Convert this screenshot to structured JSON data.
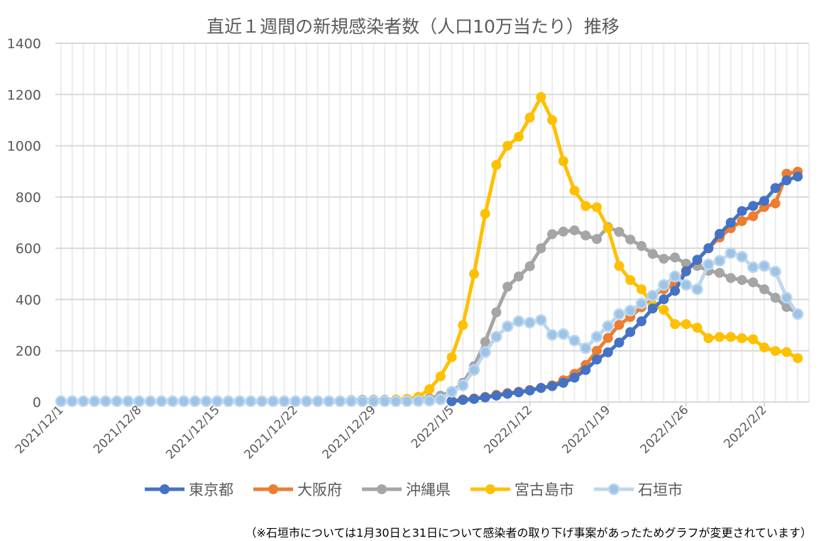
{
  "chart_data": {
    "type": "line",
    "title": "直近１週間の新規感染者数（人口10万当たり）推移",
    "footnote": "（※石垣市については1月30日と31日について感染者の取り下げ事案があったためグラフが変更されています）",
    "x_start": "2021/12/1",
    "x_end": "2022/2/5",
    "x_tick_labels": [
      "2021/12/1",
      "2021/12/8",
      "2021/12/15",
      "2021/12/22",
      "2021/12/29",
      "2022/1/5",
      "2022/1/12",
      "2022/1/19",
      "2022/1/26",
      "2022/2/2"
    ],
    "ylim": [
      0,
      1400
    ],
    "y_ticks": [
      0,
      200,
      400,
      600,
      800,
      1000,
      1200,
      1400
    ],
    "grid": true,
    "legend_position": "bottom",
    "series": [
      {
        "name": "東京都",
        "color": "#4472C4",
        "values": [
          null,
          null,
          null,
          null,
          null,
          null,
          null,
          null,
          null,
          null,
          null,
          null,
          null,
          null,
          null,
          null,
          null,
          null,
          null,
          null,
          null,
          null,
          null,
          null,
          null,
          null,
          null,
          null,
          null,
          null,
          null,
          null,
          null,
          null,
          null,
          3,
          8,
          12,
          18,
          25,
          32,
          38,
          45,
          55,
          62,
          75,
          95,
          125,
          166,
          194,
          232,
          273,
          315,
          365,
          401,
          434,
          510,
          555,
          600,
          656,
          700,
          745,
          765,
          785,
          835,
          865,
          880
        ]
      },
      {
        "name": "大阪府",
        "color": "#ED7D31",
        "values": [
          null,
          null,
          null,
          null,
          null,
          null,
          null,
          null,
          null,
          null,
          null,
          null,
          null,
          null,
          null,
          null,
          null,
          null,
          null,
          null,
          null,
          null,
          null,
          null,
          null,
          null,
          null,
          null,
          null,
          null,
          null,
          null,
          null,
          null,
          null,
          5,
          10,
          14,
          20,
          28,
          35,
          40,
          47,
          55,
          65,
          85,
          110,
          145,
          200,
          250,
          301,
          332,
          370,
          415,
          440,
          460,
          512,
          553,
          600,
          642,
          678,
          706,
          725,
          761,
          775,
          891,
          899
        ]
      },
      {
        "name": "沖縄県",
        "color": "#A5A5A5",
        "values": [
          2,
          2,
          2,
          2,
          2,
          2,
          2,
          2,
          2,
          2,
          2,
          2,
          2,
          2,
          2,
          3,
          3,
          3,
          3,
          3,
          3,
          4,
          4,
          4,
          5,
          6,
          8,
          9,
          9,
          9,
          10,
          10,
          12,
          15,
          25,
          40,
          75,
          140,
          235,
          350,
          450,
          490,
          530,
          600,
          655,
          665,
          670,
          650,
          636,
          683,
          664,
          634,
          609,
          578,
          559,
          564,
          540,
          531,
          512,
          504,
          484,
          476,
          467,
          440,
          407,
          371,
          346
        ]
      },
      {
        "name": "宮古島市",
        "color": "#FFC000",
        "values": [
          2,
          2,
          2,
          2,
          2,
          2,
          2,
          2,
          2,
          2,
          2,
          2,
          2,
          2,
          2,
          2,
          2,
          2,
          2,
          2,
          2,
          2,
          2,
          2,
          2,
          3,
          4,
          5,
          6,
          7,
          10,
          12,
          20,
          50,
          100,
          175,
          300,
          500,
          735,
          925,
          1000,
          1035,
          1110,
          1190,
          1100,
          940,
          825,
          765,
          760,
          679,
          531,
          476,
          440,
          379,
          360,
          304,
          304,
          290,
          249,
          254,
          254,
          249,
          245,
          213,
          199,
          195,
          171
        ]
      },
      {
        "name": "石垣市",
        "color": "#BDD7EE",
        "values": [
          3,
          3,
          3,
          3,
          3,
          3,
          3,
          3,
          3,
          3,
          3,
          3,
          3,
          3,
          3,
          3,
          3,
          3,
          3,
          3,
          3,
          3,
          3,
          3,
          3,
          3,
          3,
          3,
          3,
          3,
          3,
          3,
          4,
          5,
          10,
          40,
          65,
          125,
          195,
          255,
          295,
          315,
          310,
          320,
          262,
          265,
          240,
          210,
          255,
          296,
          343,
          357,
          385,
          415,
          457,
          490,
          457,
          440,
          537,
          551,
          581,
          567,
          526,
          531,
          509,
          407,
          343
        ]
      }
    ]
  }
}
